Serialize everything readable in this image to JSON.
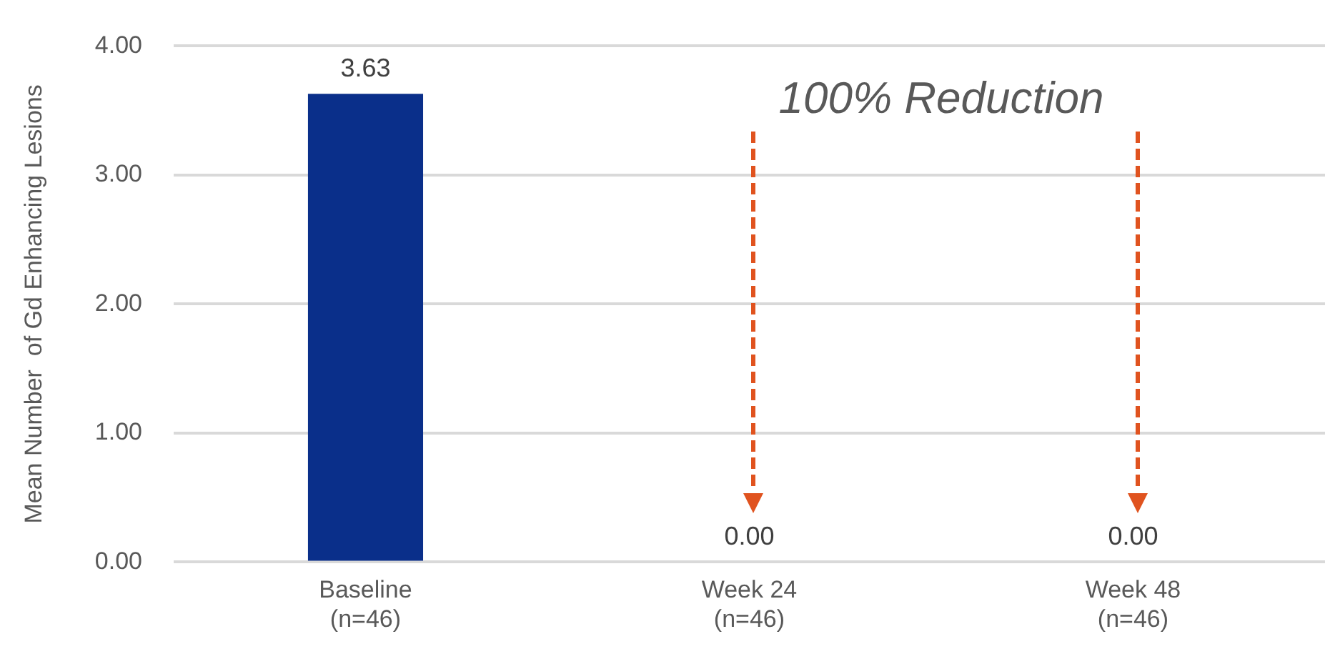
{
  "chart_data": {
    "type": "bar",
    "ylabel": "Mean Number  of Gd Enhancing Lesions",
    "categories": [
      "Baseline\n(n=46)",
      "Week 24\n(n=46)",
      "Week 48\n(n=46)"
    ],
    "values": [
      3.63,
      0,
      0
    ],
    "colors": [
      "#0a2f8a",
      "#c6e07e",
      "#c6e07e"
    ],
    "value_labels": [
      "3.63",
      "0.00",
      "0.00"
    ],
    "ylim": [
      0,
      4
    ],
    "yticks": [
      {
        "value": 0,
        "label": "0.00"
      },
      {
        "value": 1,
        "label": "1.00"
      },
      {
        "value": 2,
        "label": "2.00"
      },
      {
        "value": 3,
        "label": "3.00"
      },
      {
        "value": 4,
        "label": "4.00"
      }
    ],
    "grid": "y",
    "annotations": [
      "100% Reduction"
    ]
  }
}
